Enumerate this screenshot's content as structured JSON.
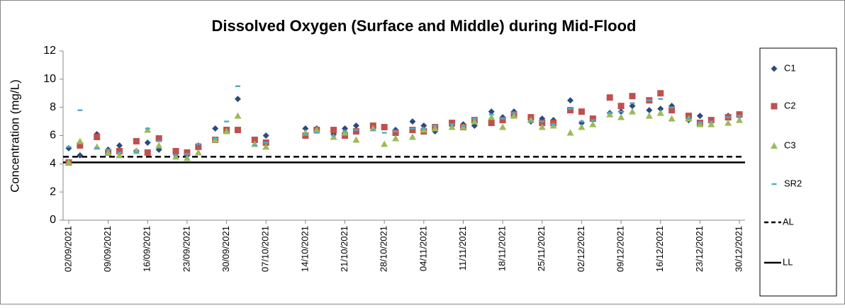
{
  "chart_data": {
    "type": "scatter",
    "title": "Dissolved Oxygen (Surface and Middle) during Mid-Flood",
    "y_label": "Concentration (mg/L)",
    "x": [
      "02/09/2021",
      "04/09/2021",
      "07/09/2021",
      "09/09/2021",
      "11/09/2021",
      "14/09/2021",
      "16/09/2021",
      "18/09/2021",
      "21/09/2021",
      "23/09/2021",
      "25/09/2021",
      "28/09/2021",
      "30/09/2021",
      "02/10/2021",
      "05/10/2021",
      "07/10/2021",
      "14/10/2021",
      "16/10/2021",
      "19/10/2021",
      "21/10/2021",
      "23/10/2021",
      "26/10/2021",
      "28/10/2021",
      "30/10/2021",
      "02/11/2021",
      "04/11/2021",
      "06/11/2021",
      "09/11/2021",
      "11/11/2021",
      "13/11/2021",
      "16/11/2021",
      "18/11/2021",
      "20/11/2021",
      "23/11/2021",
      "25/11/2021",
      "27/11/2021",
      "30/11/2021",
      "02/12/2021",
      "04/12/2021",
      "07/12/2021",
      "09/12/2021",
      "11/12/2021",
      "14/12/2021",
      "16/12/2021",
      "18/12/2021",
      "21/12/2021",
      "23/12/2021",
      "25/12/2021",
      "28/12/2021",
      "30/12/2021"
    ],
    "series": [
      {
        "name": "C1",
        "color": "#2b4a7e",
        "marker": "diamond",
        "values": [
          5.1,
          4.6,
          6.1,
          5.0,
          5.3,
          4.9,
          5.5,
          5.0,
          4.7,
          4.6,
          5.3,
          6.5,
          6.4,
          8.6,
          5.7,
          6.0,
          6.5,
          6.5,
          6.1,
          6.5,
          6.7,
          6.6,
          6.6,
          6.4,
          7.0,
          6.7,
          6.3,
          6.7,
          6.8,
          6.7,
          7.7,
          7.3,
          7.7,
          7.0,
          7.2,
          7.1,
          8.5,
          6.9,
          7.2,
          7.6,
          7.7,
          8.1,
          7.8,
          7.9,
          8.1,
          7.1,
          7.4,
          7.0,
          7.4,
          7.4
        ]
      },
      {
        "name": "C2",
        "color": "#c0504d",
        "marker": "square",
        "values": [
          4.1,
          5.3,
          5.9,
          4.8,
          4.9,
          5.6,
          4.8,
          5.8,
          4.9,
          4.8,
          5.2,
          5.7,
          6.4,
          6.4,
          5.7,
          5.5,
          6.0,
          6.4,
          6.4,
          6.0,
          6.3,
          6.7,
          6.6,
          6.2,
          6.4,
          6.3,
          6.6,
          6.9,
          6.6,
          7.1,
          6.9,
          7.1,
          7.5,
          7.3,
          6.9,
          6.9,
          7.8,
          7.7,
          7.2,
          8.7,
          8.1,
          8.8,
          8.5,
          9.0,
          7.8,
          7.4,
          6.9,
          7.1,
          7.3,
          7.5
        ]
      },
      {
        "name": "C3",
        "color": "#9bbb59",
        "marker": "triangle",
        "values": [
          4.1,
          5.6,
          5.2,
          4.8,
          4.6,
          4.9,
          6.4,
          5.3,
          4.5,
          4.4,
          4.8,
          5.7,
          6.3,
          7.4,
          5.4,
          5.2,
          6.2,
          6.4,
          5.9,
          6.2,
          5.7,
          6.5,
          5.4,
          5.8,
          5.9,
          6.4,
          6.5,
          6.6,
          6.6,
          7.0,
          7.3,
          6.6,
          7.4,
          7.1,
          6.6,
          6.7,
          6.2,
          6.6,
          6.8,
          7.5,
          7.3,
          7.7,
          7.4,
          7.6,
          7.2,
          7.2,
          6.8,
          6.8,
          6.9,
          7.1
        ]
      },
      {
        "name": "SR2",
        "color": "#4bacc6",
        "marker": "dash",
        "values": [
          5.2,
          7.8,
          5.1,
          5.0,
          4.8,
          4.8,
          6.5,
          5.6,
          4.6,
          4.7,
          5.4,
          5.8,
          7.0,
          9.5,
          5.3,
          5.5,
          6.1,
          6.2,
          6.0,
          6.3,
          6.4,
          6.4,
          6.2,
          6.3,
          6.5,
          6.5,
          6.7,
          6.8,
          6.7,
          7.2,
          7.5,
          7.2,
          7.6,
          7.0,
          7.0,
          6.8,
          7.9,
          7.0,
          7.1,
          7.6,
          7.7,
          8.3,
          8.5,
          8.6,
          8.0,
          7.2,
          6.9,
          7.0,
          7.3,
          7.4
        ]
      }
    ],
    "lines": [
      {
        "name": "AL",
        "color": "#000000",
        "dashed": true,
        "x": [
          "01/09/2021",
          "31/12/2021"
        ],
        "values": [
          4.5,
          4.5
        ]
      },
      {
        "name": "LL",
        "color": "#000000",
        "dashed": false,
        "x": [
          "01/09/2021",
          "31/12/2021"
        ],
        "values": [
          4.1,
          4.1
        ]
      }
    ],
    "xlim": [
      "01/09/2021",
      "31/12/2021"
    ],
    "xticks": [
      "02/09/2021",
      "09/09/2021",
      "16/09/2021",
      "23/09/2021",
      "30/09/2021",
      "07/10/2021",
      "14/10/2021",
      "21/10/2021",
      "28/10/2021",
      "04/11/2021",
      "11/11/2021",
      "18/11/2021",
      "25/11/2021",
      "02/12/2021",
      "09/12/2021",
      "16/12/2021",
      "23/12/2021",
      "30/12/2021"
    ],
    "ylim": [
      0,
      12
    ],
    "yticks": [
      0,
      2,
      4,
      6,
      8,
      10,
      12
    ]
  }
}
